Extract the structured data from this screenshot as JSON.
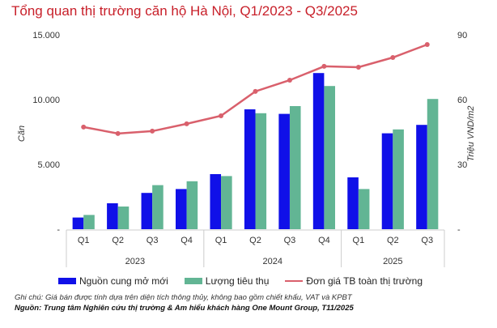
{
  "title": "Tổng quan thị trường căn hộ Hà Nội, Q1/2023 - Q3/2025",
  "chart_data": {
    "type": "bar+line",
    "categories": [
      "Q1",
      "Q2",
      "Q3",
      "Q4",
      "Q1",
      "Q2",
      "Q3",
      "Q4",
      "Q1",
      "Q2",
      "Q3"
    ],
    "year_groups": [
      {
        "label": "2023",
        "count": 4
      },
      {
        "label": "2024",
        "count": 4
      },
      {
        "label": "2025",
        "count": 3
      }
    ],
    "ylabel_left": "Căn",
    "ylabel_right": "Triệu VND/m2",
    "ylim_left": [
      0,
      15000
    ],
    "ylim_right": [
      0,
      90
    ],
    "yticks_left": [
      "-",
      "5.000",
      "10.000",
      "15.000"
    ],
    "yticks_right": [
      "-",
      "30",
      "60",
      "90"
    ],
    "series": [
      {
        "name": "Nguồn cung mở mới",
        "type": "bar",
        "axis": "left",
        "color": "#1010e8",
        "values": [
          900,
          2000,
          2800,
          3100,
          4250,
          9250,
          8900,
          12050,
          4000,
          7400,
          8050
        ]
      },
      {
        "name": "Lượng tiêu thụ",
        "type": "bar",
        "axis": "left",
        "color": "#62b594",
        "values": [
          1100,
          1750,
          3400,
          3700,
          4100,
          8950,
          9500,
          11050,
          3100,
          7700,
          10050
        ]
      },
      {
        "name": "Đơn giá TB toàn thị trường",
        "type": "line",
        "axis": "right",
        "color": "#d9606c",
        "values": [
          47.3,
          44.3,
          45.4,
          48.8,
          52.5,
          63.8,
          69,
          75.4,
          75,
          79.5,
          85.5
        ]
      }
    ],
    "legend": "bottom",
    "grid": false
  },
  "note": "Ghi chú: Giá bán được tính dựa trên diện tích thông thủy, không bao gồm chiết khấu, VAT và KPBT",
  "source": "Nguồn: Trung tâm Nghiên cứu thị trường & Am hiểu khách hàng One Mount Group, T11/2025"
}
